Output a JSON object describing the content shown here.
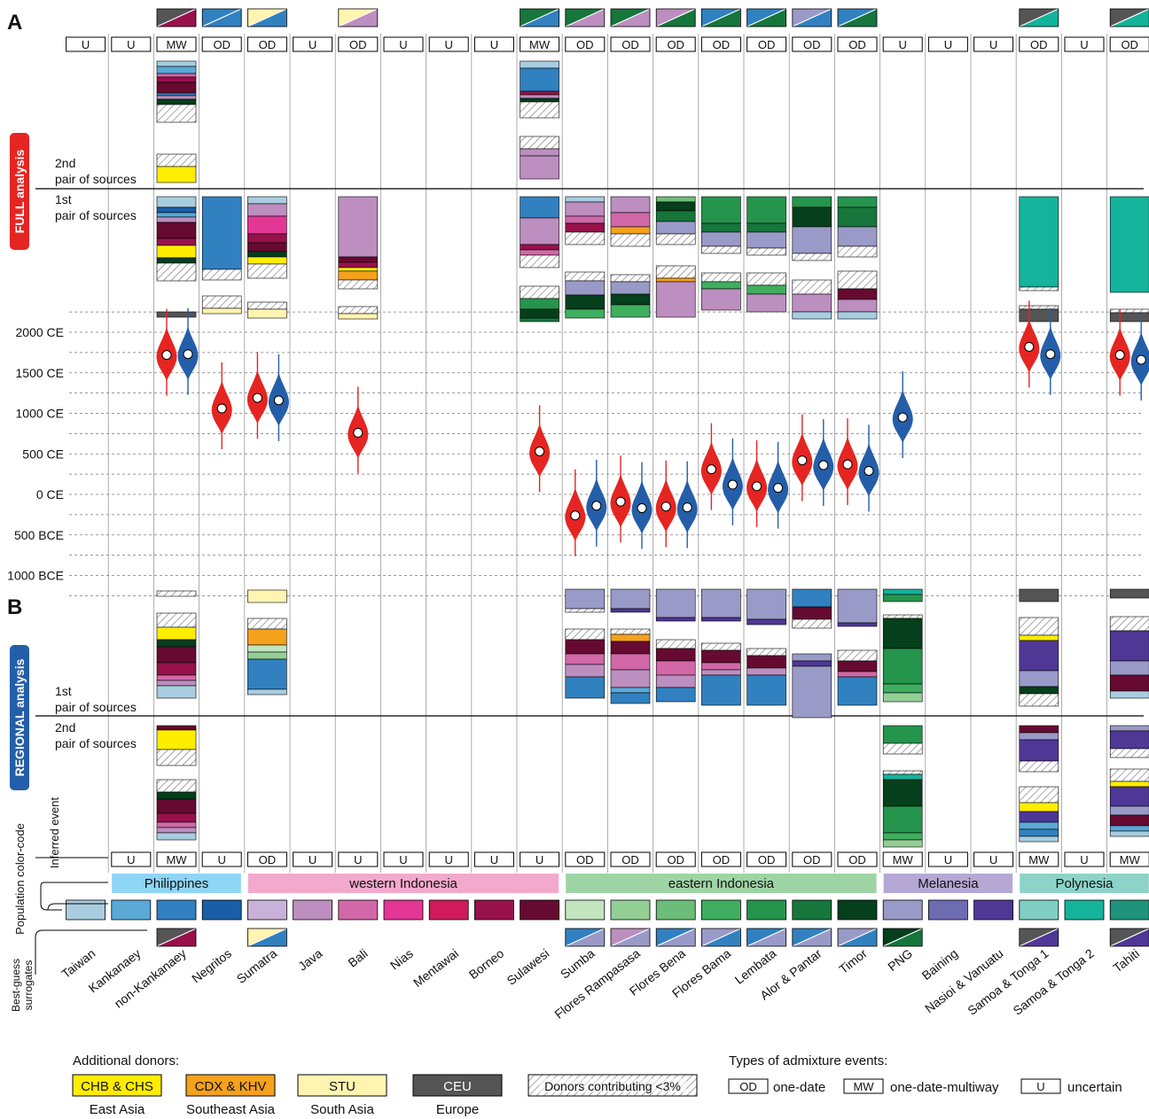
{
  "panels": {
    "a": "A",
    "b": "B"
  },
  "side_labels": {
    "full": "FULL analysis",
    "regional": "REGIONAL analysis",
    "color_code": "Population color-code",
    "surrogates": "Best-guess surrogates",
    "inferred": "Inferred event"
  },
  "pair_labels": {
    "full_2nd": [
      "2nd",
      "pair of sources"
    ],
    "full_1st": [
      "1st",
      "pair of sources"
    ],
    "reg_1st": [
      "1st",
      "pair of sources"
    ],
    "reg_2nd": [
      "2nd",
      "pair of sources"
    ]
  },
  "colors": {
    "taiwan": "#a9cde0",
    "kankanaey": "#5aa9d6",
    "nonkank": "#3181c0",
    "negritos": "#1b5ea8",
    "sumatra": "#c9b2d9",
    "java": "#bd8ec0",
    "bali": "#d268a8",
    "nias": "#e33695",
    "mentawai": "#cf1b5b",
    "borneo": "#98114b",
    "sulawesi": "#660a31",
    "sumba": "#c2e5bf",
    "floresr": "#94cf96",
    "floresbe": "#6cbd77",
    "floresba": "#3fae5e",
    "lembata": "#25944c",
    "alor": "#16763b",
    "timor": "#053f1b",
    "png": "#9a9ac8",
    "baining": "#6e6cb1",
    "nasioi": "#4f3796",
    "samoa1": "#7fcec4",
    "samoa2": "#14b39b",
    "tahiti": "#1f937b",
    "east_asia": "#ffed00",
    "se_asia": "#f4a11c",
    "south_asia": "#fff4b0",
    "europe": "#555555",
    "red": "#e52521",
    "blue": "#255ea8"
  },
  "populations": [
    "Taiwan",
    "Kankanaey",
    "non-Kankanaey",
    "Negritos",
    "Sumatra",
    "Java",
    "Bali",
    "Nias",
    "Mentawai",
    "Borneo",
    "Sulawesi",
    "Sumba",
    "Flores Rampasasa",
    "Flores Bena",
    "Flores Bama",
    "Lembata",
    "Alor & Pantar",
    "Timor",
    "PNG",
    "Baining",
    "Nasioi & Vanuatu",
    "Samoa & Tonga 1",
    "Samoa & Tonga 2",
    "Tahiti"
  ],
  "pop_color_keys": [
    "taiwan",
    "kankanaey",
    "nonkank",
    "negritos",
    "sumatra",
    "java",
    "bali",
    "nias",
    "mentawai",
    "borneo",
    "sulawesi",
    "sumba",
    "floresr",
    "floresbe",
    "floresba",
    "lembata",
    "alor",
    "timor",
    "png",
    "baining",
    "nasioi",
    "samoa1",
    "samoa2",
    "tahiti"
  ],
  "full_events": [
    "U",
    "U",
    "MW",
    "OD",
    "OD",
    "U",
    "OD",
    "U",
    "U",
    "U",
    "MW",
    "OD",
    "OD",
    "OD",
    "OD",
    "OD",
    "OD",
    "OD",
    "U",
    "U",
    "U",
    "OD",
    "U",
    "OD"
  ],
  "regional_events": [
    "",
    "U",
    "MW",
    "U",
    "OD",
    "U",
    "U",
    "U",
    "U",
    "U",
    "U",
    "OD",
    "OD",
    "OD",
    "OD",
    "OD",
    "OD",
    "OD",
    "MW",
    "U",
    "U",
    "MW",
    "U",
    "MW"
  ],
  "regions": [
    {
      "name": "Philippines",
      "color": "#8fd5f5",
      "start": 1,
      "end": 3
    },
    {
      "name": "western Indonesia",
      "color": "#f3a9cb",
      "start": 4,
      "end": 10
    },
    {
      "name": "eastern Indonesia",
      "color": "#9ed4a4",
      "start": 11,
      "end": 17
    },
    {
      "name": "Melanesia",
      "color": "#b5a8d4",
      "start": 18,
      "end": 20
    },
    {
      "name": "Polynesia",
      "color": "#8dd3c8",
      "start": 21,
      "end": 23
    }
  ],
  "surrogates_top": [
    null,
    null,
    [
      "europe",
      "borneo"
    ],
    [
      "nonkank",
      "nonkank"
    ],
    [
      "south_asia",
      "nonkank"
    ],
    null,
    [
      "south_asia",
      "java"
    ],
    null,
    null,
    null,
    [
      "alor",
      "nonkank"
    ],
    [
      "alor",
      "java"
    ],
    [
      "alor",
      "java"
    ],
    [
      "java",
      "alor"
    ],
    [
      "nonkank",
      "alor"
    ],
    [
      "nonkank",
      "alor"
    ],
    [
      "png",
      "nonkank"
    ],
    [
      "nonkank",
      "alor"
    ],
    null,
    null,
    null,
    [
      "europe",
      "samoa2"
    ],
    null,
    [
      "europe",
      "samoa2"
    ]
  ],
  "surrogates_bottom": [
    null,
    null,
    [
      "europe",
      "borneo"
    ],
    null,
    [
      "south_asia",
      "nonkank"
    ],
    null,
    null,
    null,
    null,
    null,
    null,
    [
      "nonkank",
      "png"
    ],
    [
      "java",
      "png"
    ],
    [
      "nonkank",
      "png"
    ],
    [
      "png",
      "nonkank"
    ],
    [
      "nonkank",
      "png"
    ],
    [
      "nonkank",
      "png"
    ],
    [
      "png",
      "nonkank"
    ],
    [
      "timor",
      "alor"
    ],
    null,
    null,
    [
      "europe",
      "nasioi"
    ],
    null,
    [
      "europe",
      "nasioi"
    ]
  ],
  "chart_data": {
    "type": "violin",
    "ylabel": "",
    "ticks": [
      "2000 CE",
      "1500 CE",
      "1000 CE",
      "500 CE",
      "0 CE",
      "500 BCE",
      "1000 BCE"
    ],
    "tick_values": [
      2000,
      1500,
      1000,
      500,
      0,
      -500,
      -1000
    ],
    "ylim": [
      -1000,
      2000
    ],
    "series": [
      {
        "name": "FULL analysis",
        "color": "red"
      },
      {
        "name": "REGIONAL analysis",
        "color": "blue"
      }
    ],
    "dates": [
      {
        "population": "non-Kankanaey",
        "full": 1720,
        "regional": 1730
      },
      {
        "population": "Negritos",
        "full": 1060,
        "regional": null
      },
      {
        "population": "Sumatra",
        "full": 1190,
        "regional": 1160
      },
      {
        "population": "Bali",
        "full": 760,
        "regional": null
      },
      {
        "population": "Sulawesi",
        "full": 530,
        "regional": null
      },
      {
        "population": "Sumba",
        "full": -260,
        "regional": -140
      },
      {
        "population": "Flores Rampasasa",
        "full": -90,
        "regional": -170
      },
      {
        "population": "Flores Bena",
        "full": -150,
        "regional": -160
      },
      {
        "population": "Flores Bama",
        "full": 310,
        "regional": 120
      },
      {
        "population": "Lembata",
        "full": 100,
        "regional": 80
      },
      {
        "population": "Alor & Pantar",
        "full": 420,
        "regional": 360
      },
      {
        "population": "Timor",
        "full": 370,
        "regional": 290
      },
      {
        "population": "PNG",
        "full": null,
        "regional": 950
      },
      {
        "population": "Samoa & Tonga 1",
        "full": 1820,
        "regional": 1730
      },
      {
        "population": "Tahiti",
        "full": 1720,
        "regional": 1660
      }
    ]
  },
  "legend": {
    "donors_title": "Additional donors:",
    "donors": [
      {
        "label": "CHB & CHS",
        "sub": "East Asia",
        "color": "east_asia"
      },
      {
        "label": "CDX & KHV",
        "sub": "Southeast Asia",
        "color": "se_asia"
      },
      {
        "label": "STU",
        "sub": "South Asia",
        "color": "south_asia"
      },
      {
        "label": "CEU",
        "sub": "Europe",
        "color": "europe"
      }
    ],
    "minor": "Donors contributing <3%",
    "types_title": "Types of admixture events:",
    "types": [
      {
        "code": "OD",
        "label": "one-date"
      },
      {
        "code": "MW",
        "label": "one-date-multiway"
      },
      {
        "code": "U",
        "label": "uncertain"
      }
    ]
  }
}
